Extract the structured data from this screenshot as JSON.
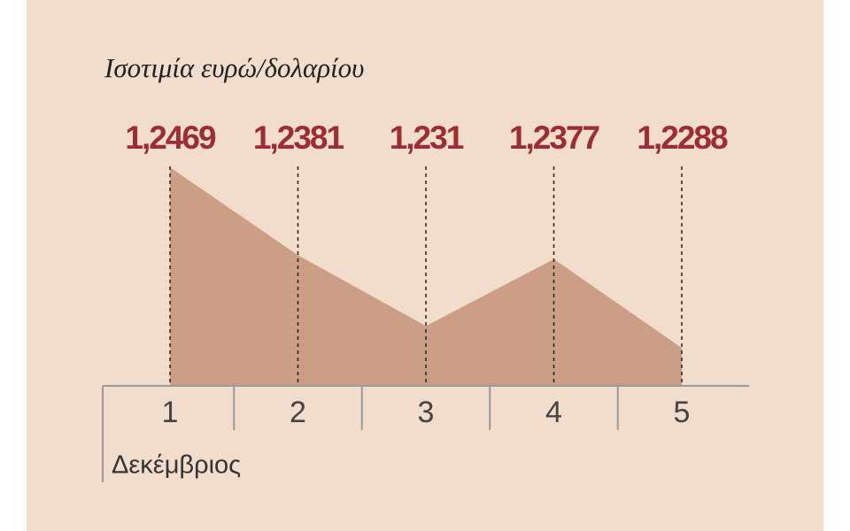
{
  "chart_data": {
    "type": "area",
    "title": "Ισοτιμία ευρώ/δολαρίου",
    "categories": [
      "1",
      "2",
      "3",
      "4",
      "5"
    ],
    "values": [
      1.2469,
      1.2381,
      1.231,
      1.2377,
      1.2288
    ],
    "value_labels": [
      "1,2469",
      "1,2381",
      "1,231",
      "1,2377",
      "1,2288"
    ],
    "x_label": "Δεκέμβριος",
    "color": "#cc9e85",
    "label_color": "#9b2d35",
    "ylim": [
      1.225,
      1.247
    ]
  }
}
